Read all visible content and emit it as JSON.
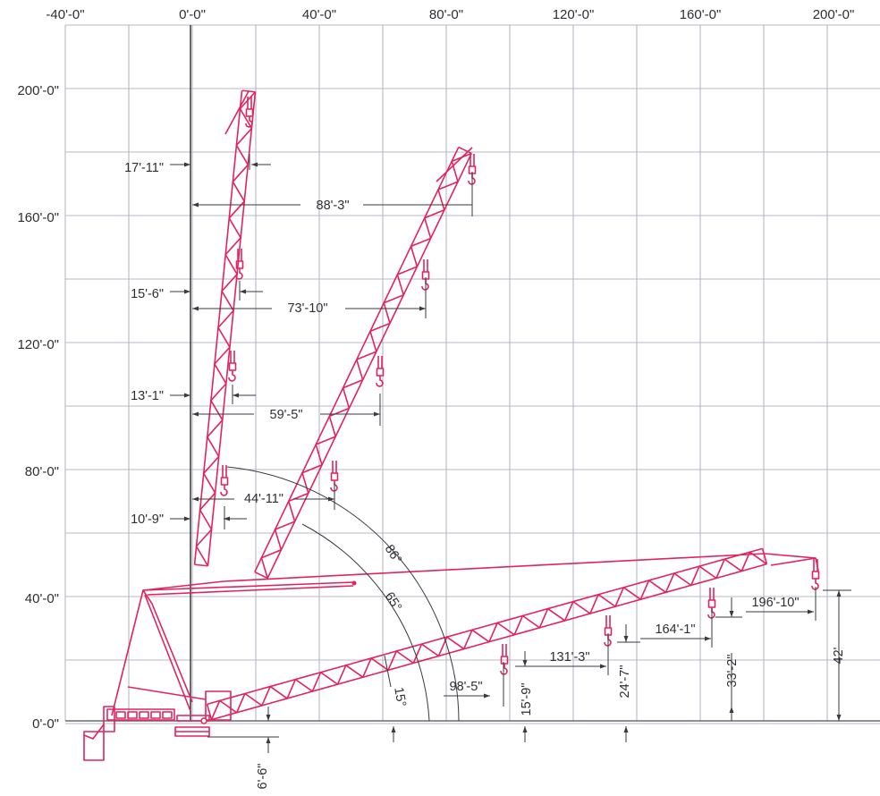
{
  "colors": {
    "crane": "#e0245e",
    "grid": "#b4b8c3",
    "dimension": "#3a3a3d",
    "text": "#2f2f33"
  },
  "x_axis_labels": [
    "-40'-0\"",
    "0'-0\"",
    "40'-0\"",
    "80'-0\"",
    "120'-0\"",
    "160'-0\"",
    "200'-0\""
  ],
  "y_axis_labels": [
    "200'-0\"",
    "160'-0\"",
    "120'-0\"",
    "80'-0\"",
    "40'-0\"",
    "0'-0\""
  ],
  "boom_angles": [
    "86°",
    "65°",
    "15°"
  ],
  "radius_dims_86": [
    "17'-11\"",
    "15'-6\"",
    "13'-1\"",
    "10'-9\""
  ],
  "radius_dims_65": [
    "88'-3\"",
    "73'-10\"",
    "59'-5\"",
    "44'-11\""
  ],
  "radius_dims_15": [
    "98'-5\"",
    "131'-3\"",
    "164'-1\"",
    "196'-10\""
  ],
  "height_dims_15": [
    "15'-9\"",
    "24'-7\"",
    "33'-2\"",
    "42'"
  ],
  "pivot_height": "6'-6\""
}
